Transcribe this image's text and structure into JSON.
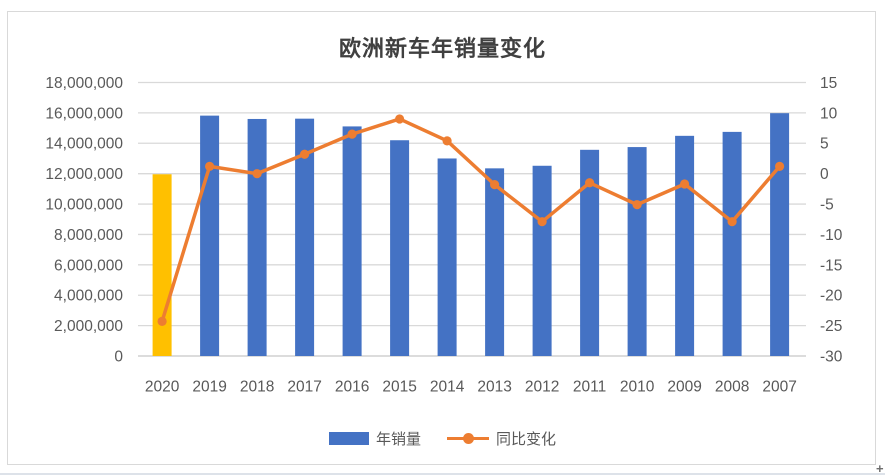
{
  "window": {
    "cursor_icon": "plus-cursor",
    "cursor_glyph": "+"
  },
  "chart_data": {
    "type": "combo-bar-line",
    "title": "欧洲新车年销量变化",
    "categories": [
      "2020",
      "2019",
      "2018",
      "2017",
      "2016",
      "2015",
      "2014",
      "2013",
      "2012",
      "2011",
      "2010",
      "2009",
      "2008",
      "2007"
    ],
    "series": [
      {
        "name": "年销量",
        "type": "bar",
        "axis": "left",
        "color": "#4472C4",
        "values": [
          11960000,
          15820000,
          15600000,
          15620000,
          15110000,
          14200000,
          13000000,
          12350000,
          12520000,
          13570000,
          13750000,
          14490000,
          14750000,
          15980000
        ],
        "highlight": {
          "index": 0,
          "color": "#FFC000"
        }
      },
      {
        "name": "同比变化",
        "type": "line",
        "axis": "right",
        "color": "#ED7D31",
        "values": [
          -24.3,
          1.2,
          0,
          3.2,
          6.5,
          9,
          5.4,
          -1.8,
          -7.9,
          -1.5,
          -5.1,
          -1.7,
          -7.9,
          1.2
        ]
      }
    ],
    "left_axis": {
      "min": 0,
      "max": 18000000,
      "step": 2000000,
      "tick_labels": [
        "18,000,000",
        "16,000,000",
        "14,000,000",
        "12,000,000",
        "10,000,000",
        "8,000,000",
        "6,000,000",
        "4,000,000",
        "2,000,000",
        "0"
      ]
    },
    "right_axis": {
      "min": -30,
      "max": 15,
      "step": 5,
      "tick_labels": [
        "15",
        "10",
        "5",
        "0",
        "-5",
        "-10",
        "-15",
        "-20",
        "-25",
        "-30"
      ]
    },
    "grid": true,
    "legend_position": "bottom"
  },
  "colors": {
    "grid": "#D9D9D9",
    "axis_line": "#C6C6C6",
    "tick_text": "#595959",
    "title_text": "#404040",
    "frame_border": "#D9D9D9"
  }
}
